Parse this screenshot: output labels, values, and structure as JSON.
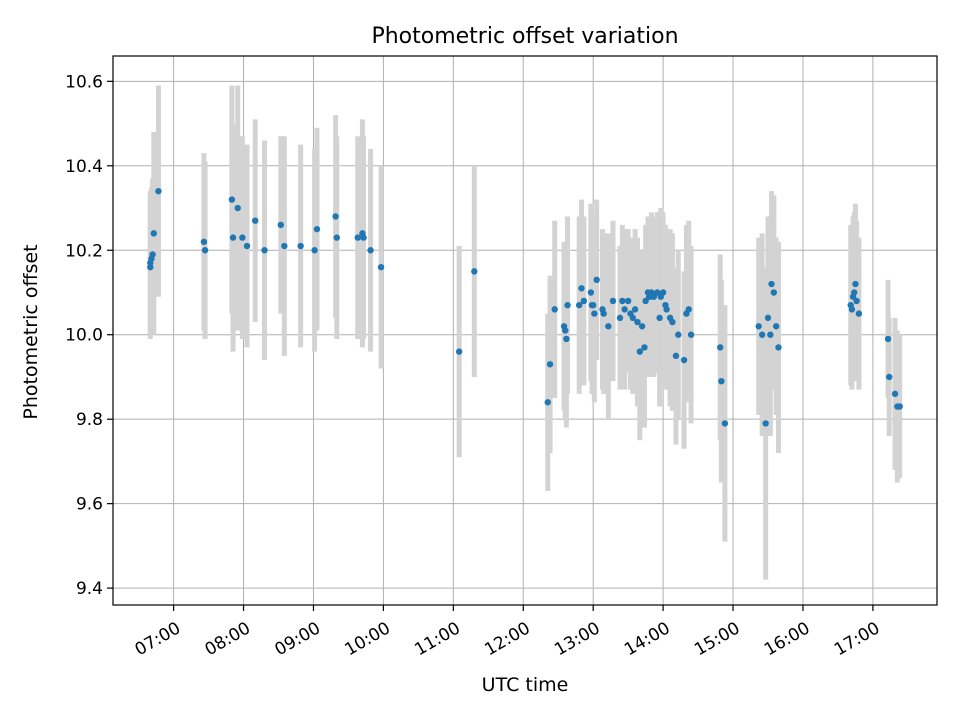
{
  "chart_data": {
    "type": "scatter",
    "title": "Photometric offset variation",
    "xlabel": "UTC time",
    "ylabel": "Photometric offset",
    "x_axis_type": "time",
    "xlim": [
      "06:08",
      "17:55"
    ],
    "ylim": [
      9.36,
      10.66
    ],
    "x_ticks": [
      "07:00",
      "08:00",
      "09:00",
      "10:00",
      "11:00",
      "12:00",
      "13:00",
      "14:00",
      "15:00",
      "16:00",
      "17:00"
    ],
    "y_ticks": [
      9.4,
      9.6,
      9.8,
      10.0,
      10.2,
      10.4,
      10.6
    ],
    "y_tick_labels": [
      "9.4",
      "9.6",
      "9.8",
      "10.0",
      "10.2",
      "10.4",
      "10.6"
    ],
    "grid": true,
    "colors": {
      "marker": "#1f77b4",
      "errorbar": "#d3d3d3",
      "grid": "#b0b0b0",
      "axes": "#000000"
    },
    "series": [
      {
        "x": [
          "06:40",
          "06:40",
          "06:41",
          "06:42",
          "06:43",
          "06:47",
          "07:26",
          "07:27",
          "07:50",
          "07:51",
          "07:55",
          "07:59",
          "08:03",
          "08:10",
          "08:18",
          "08:32",
          "08:35",
          "08:49",
          "09:01",
          "09:03",
          "09:19",
          "09:20",
          "09:38",
          "09:42",
          "09:43",
          "09:49",
          "09:58",
          "11:05",
          "11:18",
          "12:21",
          "12:23",
          "12:27",
          "12:35",
          "12:36",
          "12:37",
          "12:38",
          "12:48",
          "12:50",
          "12:52",
          "12:58",
          "12:59",
          "13:00",
          "13:01",
          "13:03",
          "13:08",
          "13:09",
          "13:13",
          "13:17",
          "13:23",
          "13:25",
          "13:27",
          "13:30",
          "13:32",
          "13:34",
          "13:36",
          "13:38",
          "13:40",
          "13:42",
          "13:44",
          "13:45",
          "13:47",
          "13:48",
          "13:49",
          "13:50",
          "13:52",
          "13:55",
          "13:57",
          "13:58",
          "14:00",
          "14:02",
          "14:03",
          "14:06",
          "14:08",
          "14:11",
          "14:13",
          "14:18",
          "14:20",
          "14:22",
          "14:24",
          "14:49",
          "14:50",
          "14:53",
          "15:22",
          "15:25",
          "15:28",
          "15:30",
          "15:32",
          "15:33",
          "15:35",
          "15:37",
          "15:39",
          "16:41",
          "16:42",
          "16:43",
          "16:44",
          "16:45",
          "16:46",
          "16:48",
          "17:13",
          "17:14",
          "17:19",
          "17:21",
          "17:23"
        ],
        "y": [
          10.16,
          10.17,
          10.18,
          10.19,
          10.24,
          10.34,
          10.22,
          10.2,
          10.32,
          10.23,
          10.3,
          10.23,
          10.21,
          10.27,
          10.2,
          10.26,
          10.21,
          10.21,
          10.2,
          10.25,
          10.28,
          10.23,
          10.23,
          10.24,
          10.23,
          10.2,
          10.16,
          9.96,
          10.15,
          9.84,
          9.93,
          10.06,
          10.02,
          10.01,
          9.99,
          10.07,
          10.07,
          10.11,
          10.08,
          10.1,
          10.07,
          10.07,
          10.05,
          10.13,
          10.06,
          10.05,
          10.02,
          10.08,
          10.04,
          10.08,
          10.06,
          10.08,
          10.05,
          10.04,
          10.06,
          10.03,
          9.96,
          10.02,
          9.97,
          10.08,
          10.1,
          10.09,
          10.09,
          10.1,
          10.09,
          10.1,
          10.04,
          10.09,
          10.1,
          10.07,
          10.06,
          10.04,
          10.03,
          9.95,
          10.0,
          9.94,
          10.05,
          10.06,
          10.0,
          9.97,
          9.89,
          9.79,
          10.02,
          10.0,
          9.79,
          10.04,
          10.0,
          10.12,
          10.1,
          10.02,
          9.97,
          10.07,
          10.06,
          10.09,
          10.1,
          10.12,
          10.08,
          10.05,
          9.99,
          9.9,
          9.86,
          9.83,
          9.83
        ],
        "yerr": [
          0.17,
          0.17,
          0.17,
          0.18,
          0.24,
          0.25,
          0.21,
          0.21,
          0.27,
          0.27,
          0.29,
          0.24,
          0.24,
          0.24,
          0.26,
          0.21,
          0.26,
          0.24,
          0.24,
          0.24,
          0.24,
          0.24,
          0.24,
          0.27,
          0.24,
          0.24,
          0.24,
          0.25,
          0.25,
          0.21,
          0.21,
          0.21,
          0.2,
          0.21,
          0.21,
          0.21,
          0.21,
          0.21,
          0.2,
          0.21,
          0.21,
          0.21,
          0.21,
          0.19,
          0.19,
          0.19,
          0.22,
          0.19,
          0.17,
          0.18,
          0.19,
          0.17,
          0.18,
          0.18,
          0.19,
          0.2,
          0.21,
          0.18,
          0.19,
          0.18,
          0.18,
          0.19,
          0.19,
          0.19,
          0.19,
          0.19,
          0.21,
          0.21,
          0.19,
          0.19,
          0.19,
          0.21,
          0.21,
          0.21,
          0.2,
          0.21,
          0.21,
          0.21,
          0.21,
          0.22,
          0.24,
          0.28,
          0.21,
          0.24,
          0.37,
          0.24,
          0.24,
          0.22,
          0.23,
          0.21,
          0.25,
          0.19,
          0.19,
          0.19,
          0.19,
          0.19,
          0.19,
          0.18,
          0.14,
          0.14,
          0.18,
          0.18,
          0.17
        ]
      }
    ]
  }
}
